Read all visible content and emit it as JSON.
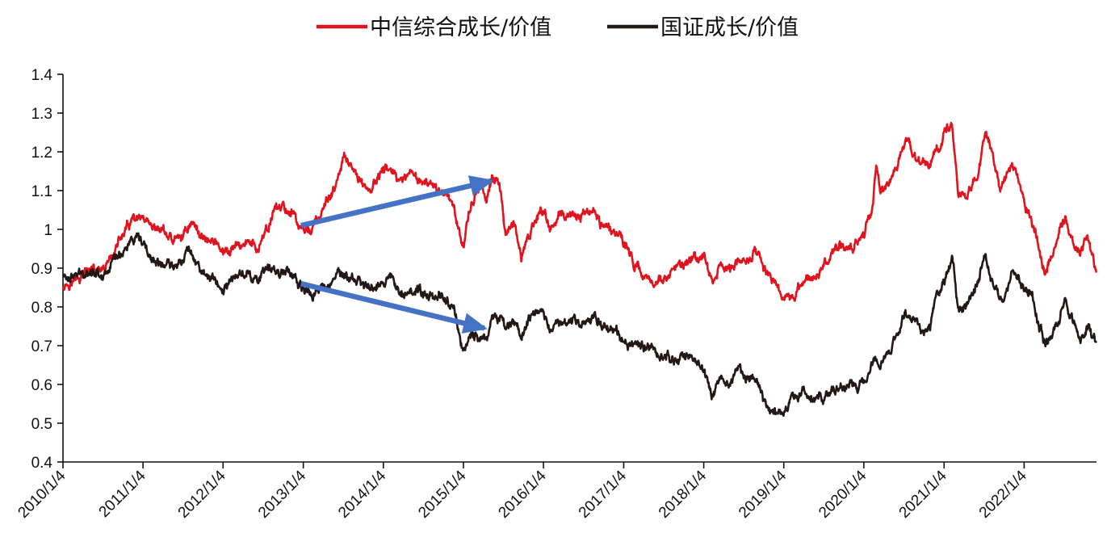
{
  "chart_data": {
    "type": "line",
    "title": "",
    "xlabel": "",
    "ylabel": "",
    "ylim": [
      0.4,
      1.4
    ],
    "y_ticks": [
      "1.4",
      "1.3",
      "1.2",
      "1.1",
      "1",
      "0.9",
      "0.8",
      "0.7",
      "0.6",
      "0.5",
      "0.4"
    ],
    "x_range": [
      "2010-01-04",
      "2022-11-30"
    ],
    "x_ticks": [
      "2010/1/4",
      "2011/1/4",
      "2012/1/4",
      "2013/1/4",
      "2014/1/4",
      "2015/1/4",
      "2016/1/4",
      "2017/1/4",
      "2018/1/4",
      "2019/1/4",
      "2020/1/4",
      "2021/1/4",
      "2022/1/4"
    ],
    "grid": false,
    "legend_position": "top-center",
    "series": [
      {
        "name": "中信综合成长/价值",
        "color": "#e0141e",
        "points": [
          [
            "2010-01-04",
            0.86
          ],
          [
            "2010-03-15",
            0.87
          ],
          [
            "2010-05-10",
            0.9
          ],
          [
            "2010-07-05",
            0.88
          ],
          [
            "2010-08-20",
            0.94
          ],
          [
            "2010-10-10",
            0.99
          ],
          [
            "2010-11-15",
            1.02
          ],
          [
            "2011-01-04",
            1.02
          ],
          [
            "2011-02-10",
            0.99
          ],
          [
            "2011-04-01",
            1.0
          ],
          [
            "2011-05-20",
            0.97
          ],
          [
            "2011-07-01",
            0.98
          ],
          [
            "2011-08-10",
            1.02
          ],
          [
            "2011-09-20",
            0.99
          ],
          [
            "2011-11-10",
            0.97
          ],
          [
            "2011-12-20",
            0.96
          ],
          [
            "2012-01-04",
            0.93
          ],
          [
            "2012-03-01",
            0.95
          ],
          [
            "2012-04-20",
            0.97
          ],
          [
            "2012-06-10",
            0.95
          ],
          [
            "2012-07-25",
            0.99
          ],
          [
            "2012-08-20",
            1.05
          ],
          [
            "2012-09-15",
            1.06
          ],
          [
            "2012-10-20",
            1.05
          ],
          [
            "2012-11-30",
            1.04
          ],
          [
            "2012-12-15",
            1.0
          ],
          [
            "2013-01-04",
            1.0
          ],
          [
            "2013-02-10",
            1.0
          ],
          [
            "2013-04-01",
            1.04
          ],
          [
            "2013-05-15",
            1.1
          ],
          [
            "2013-06-10",
            1.12
          ],
          [
            "2013-07-10",
            1.19
          ],
          [
            "2013-08-10",
            1.15
          ],
          [
            "2013-09-20",
            1.13
          ],
          [
            "2013-11-01",
            1.1
          ],
          [
            "2014-01-04",
            1.15
          ],
          [
            "2014-02-10",
            1.16
          ],
          [
            "2014-03-20",
            1.11
          ],
          [
            "2014-05-20",
            1.14
          ],
          [
            "2014-07-10",
            1.12
          ],
          [
            "2014-08-20",
            1.1
          ],
          [
            "2014-10-01",
            1.1
          ],
          [
            "2014-11-20",
            1.07
          ],
          [
            "2014-12-20",
            0.98
          ],
          [
            "2015-01-04",
            0.97
          ],
          [
            "2015-02-10",
            1.07
          ],
          [
            "2015-03-20",
            1.1
          ],
          [
            "2015-04-20",
            1.09
          ],
          [
            "2015-05-15",
            1.14
          ],
          [
            "2015-06-20",
            1.1
          ],
          [
            "2015-07-15",
            1.0
          ],
          [
            "2015-08-20",
            1.02
          ],
          [
            "2015-09-25",
            0.92
          ],
          [
            "2015-11-10",
            1.0
          ],
          [
            "2015-12-20",
            1.05
          ],
          [
            "2016-01-04",
            1.05
          ],
          [
            "2016-02-10",
            1.0
          ],
          [
            "2016-04-01",
            1.04
          ],
          [
            "2016-06-10",
            1.03
          ],
          [
            "2016-08-20",
            1.05
          ],
          [
            "2016-10-01",
            1.01
          ],
          [
            "2016-12-01",
            1.0
          ],
          [
            "2017-01-04",
            0.97
          ],
          [
            "2017-02-20",
            0.91
          ],
          [
            "2017-04-10",
            0.88
          ],
          [
            "2017-06-01",
            0.87
          ],
          [
            "2017-07-20",
            0.87
          ],
          [
            "2017-09-10",
            0.9
          ],
          [
            "2017-11-20",
            0.92
          ],
          [
            "2018-01-04",
            0.93
          ],
          [
            "2018-02-10",
            0.86
          ],
          [
            "2018-03-20",
            0.91
          ],
          [
            "2018-05-01",
            0.89
          ],
          [
            "2018-06-10",
            0.92
          ],
          [
            "2018-07-20",
            0.92
          ],
          [
            "2018-09-01",
            0.94
          ],
          [
            "2018-10-10",
            0.9
          ],
          [
            "2018-11-20",
            0.87
          ],
          [
            "2019-01-04",
            0.82
          ],
          [
            "2019-02-20",
            0.84
          ],
          [
            "2019-04-01",
            0.86
          ],
          [
            "2019-05-20",
            0.88
          ],
          [
            "2019-07-01",
            0.9
          ],
          [
            "2019-08-20",
            0.94
          ],
          [
            "2019-10-01",
            0.96
          ],
          [
            "2019-11-20",
            0.96
          ],
          [
            "2020-01-04",
            1.0
          ],
          [
            "2020-02-10",
            1.05
          ],
          [
            "2020-03-01",
            1.15
          ],
          [
            "2020-03-20",
            1.09
          ],
          [
            "2020-04-20",
            1.12
          ],
          [
            "2020-06-01",
            1.15
          ],
          [
            "2020-07-10",
            1.23
          ],
          [
            "2020-08-10",
            1.2
          ],
          [
            "2020-09-20",
            1.17
          ],
          [
            "2020-11-01",
            1.17
          ],
          [
            "2020-12-20",
            1.22
          ],
          [
            "2021-01-04",
            1.24
          ],
          [
            "2021-02-10",
            1.28
          ],
          [
            "2021-03-10",
            1.1
          ],
          [
            "2021-04-10",
            1.08
          ],
          [
            "2021-05-10",
            1.12
          ],
          [
            "2021-06-10",
            1.15
          ],
          [
            "2021-07-10",
            1.25
          ],
          [
            "2021-08-10",
            1.2
          ],
          [
            "2021-09-20",
            1.11
          ],
          [
            "2021-11-10",
            1.15
          ],
          [
            "2021-12-20",
            1.1
          ],
          [
            "2022-01-04",
            1.07
          ],
          [
            "2022-02-10",
            1.02
          ],
          [
            "2022-03-10",
            0.96
          ],
          [
            "2022-04-10",
            0.88
          ],
          [
            "2022-05-10",
            0.94
          ],
          [
            "2022-06-10",
            0.99
          ],
          [
            "2022-07-10",
            1.03
          ],
          [
            "2022-08-20",
            0.96
          ],
          [
            "2022-09-20",
            0.94
          ],
          [
            "2022-10-20",
            0.98
          ],
          [
            "2022-11-30",
            0.89
          ]
        ]
      },
      {
        "name": "国证成长/价值",
        "color": "#231815",
        "points": [
          [
            "2010-01-04",
            0.88
          ],
          [
            "2010-03-15",
            0.88
          ],
          [
            "2010-05-10",
            0.9
          ],
          [
            "2010-07-05",
            0.88
          ],
          [
            "2010-08-20",
            0.92
          ],
          [
            "2010-10-10",
            0.95
          ],
          [
            "2010-11-15",
            0.97
          ],
          [
            "2011-01-04",
            0.96
          ],
          [
            "2011-02-10",
            0.92
          ],
          [
            "2011-04-01",
            0.91
          ],
          [
            "2011-05-20",
            0.9
          ],
          [
            "2011-07-01",
            0.93
          ],
          [
            "2011-08-10",
            0.95
          ],
          [
            "2011-09-20",
            0.9
          ],
          [
            "2011-11-10",
            0.87
          ],
          [
            "2011-12-20",
            0.86
          ],
          [
            "2012-01-04",
            0.84
          ],
          [
            "2012-03-01",
            0.88
          ],
          [
            "2012-04-20",
            0.89
          ],
          [
            "2012-06-10",
            0.87
          ],
          [
            "2012-07-25",
            0.89
          ],
          [
            "2012-08-20",
            0.9
          ],
          [
            "2012-09-15",
            0.89
          ],
          [
            "2012-10-20",
            0.9
          ],
          [
            "2012-11-30",
            0.88
          ],
          [
            "2012-12-15",
            0.84
          ],
          [
            "2013-01-04",
            0.84
          ],
          [
            "2013-02-10",
            0.83
          ],
          [
            "2013-04-01",
            0.85
          ],
          [
            "2013-05-15",
            0.87
          ],
          [
            "2013-06-10",
            0.89
          ],
          [
            "2013-07-10",
            0.88
          ],
          [
            "2013-08-10",
            0.87
          ],
          [
            "2013-09-20",
            0.86
          ],
          [
            "2013-11-01",
            0.85
          ],
          [
            "2014-01-04",
            0.87
          ],
          [
            "2014-02-10",
            0.87
          ],
          [
            "2014-03-20",
            0.85
          ],
          [
            "2014-05-20",
            0.84
          ],
          [
            "2014-07-10",
            0.83
          ],
          [
            "2014-08-20",
            0.83
          ],
          [
            "2014-10-01",
            0.83
          ],
          [
            "2014-11-20",
            0.8
          ],
          [
            "2014-12-20",
            0.72
          ],
          [
            "2015-01-04",
            0.69
          ],
          [
            "2015-02-10",
            0.72
          ],
          [
            "2015-03-20",
            0.73
          ],
          [
            "2015-04-20",
            0.72
          ],
          [
            "2015-05-15",
            0.78
          ],
          [
            "2015-06-20",
            0.77
          ],
          [
            "2015-07-15",
            0.75
          ],
          [
            "2015-08-20",
            0.76
          ],
          [
            "2015-09-25",
            0.73
          ],
          [
            "2015-11-10",
            0.77
          ],
          [
            "2015-12-20",
            0.78
          ],
          [
            "2016-01-04",
            0.78
          ],
          [
            "2016-02-10",
            0.75
          ],
          [
            "2016-04-01",
            0.77
          ],
          [
            "2016-06-10",
            0.76
          ],
          [
            "2016-08-20",
            0.77
          ],
          [
            "2016-10-01",
            0.76
          ],
          [
            "2016-12-01",
            0.74
          ],
          [
            "2017-01-04",
            0.72
          ],
          [
            "2017-02-20",
            0.7
          ],
          [
            "2017-04-10",
            0.7
          ],
          [
            "2017-06-01",
            0.68
          ],
          [
            "2017-07-20",
            0.67
          ],
          [
            "2017-09-10",
            0.66
          ],
          [
            "2017-11-20",
            0.67
          ],
          [
            "2018-01-04",
            0.64
          ],
          [
            "2018-02-10",
            0.58
          ],
          [
            "2018-03-20",
            0.62
          ],
          [
            "2018-05-01",
            0.6
          ],
          [
            "2018-06-10",
            0.63
          ],
          [
            "2018-07-20",
            0.62
          ],
          [
            "2018-09-01",
            0.6
          ],
          [
            "2018-10-10",
            0.55
          ],
          [
            "2018-11-20",
            0.53
          ],
          [
            "2019-01-04",
            0.52
          ],
          [
            "2019-02-20",
            0.56
          ],
          [
            "2019-04-01",
            0.58
          ],
          [
            "2019-05-20",
            0.56
          ],
          [
            "2019-07-01",
            0.56
          ],
          [
            "2019-08-20",
            0.58
          ],
          [
            "2019-10-01",
            0.59
          ],
          [
            "2019-11-20",
            0.6
          ],
          [
            "2020-01-04",
            0.6
          ],
          [
            "2020-02-10",
            0.65
          ],
          [
            "2020-03-01",
            0.68
          ],
          [
            "2020-03-20",
            0.66
          ],
          [
            "2020-04-20",
            0.69
          ],
          [
            "2020-06-01",
            0.72
          ],
          [
            "2020-07-10",
            0.79
          ],
          [
            "2020-08-10",
            0.77
          ],
          [
            "2020-09-20",
            0.75
          ],
          [
            "2020-11-01",
            0.76
          ],
          [
            "2020-12-20",
            0.85
          ],
          [
            "2021-01-04",
            0.87
          ],
          [
            "2021-02-10",
            0.93
          ],
          [
            "2021-03-10",
            0.78
          ],
          [
            "2021-04-10",
            0.8
          ],
          [
            "2021-05-10",
            0.84
          ],
          [
            "2021-06-10",
            0.87
          ],
          [
            "2021-07-10",
            0.94
          ],
          [
            "2021-08-10",
            0.86
          ],
          [
            "2021-09-20",
            0.82
          ],
          [
            "2021-11-10",
            0.88
          ],
          [
            "2021-12-20",
            0.87
          ],
          [
            "2022-01-04",
            0.85
          ],
          [
            "2022-02-10",
            0.82
          ],
          [
            "2022-03-10",
            0.76
          ],
          [
            "2022-04-10",
            0.7
          ],
          [
            "2022-05-10",
            0.74
          ],
          [
            "2022-06-10",
            0.76
          ],
          [
            "2022-07-10",
            0.81
          ],
          [
            "2022-08-20",
            0.76
          ],
          [
            "2022-09-20",
            0.71
          ],
          [
            "2022-10-20",
            0.76
          ],
          [
            "2022-11-30",
            0.7
          ]
        ]
      }
    ],
    "annotations": [
      {
        "kind": "arrow",
        "color": "#4472c4",
        "from": [
          "2012-12-25",
          1.01
        ],
        "to": [
          "2015-05-10",
          1.125
        ]
      },
      {
        "kind": "arrow",
        "color": "#4472c4",
        "from": [
          "2012-12-25",
          0.86
        ],
        "to": [
          "2015-04-10",
          0.745
        ]
      }
    ]
  }
}
